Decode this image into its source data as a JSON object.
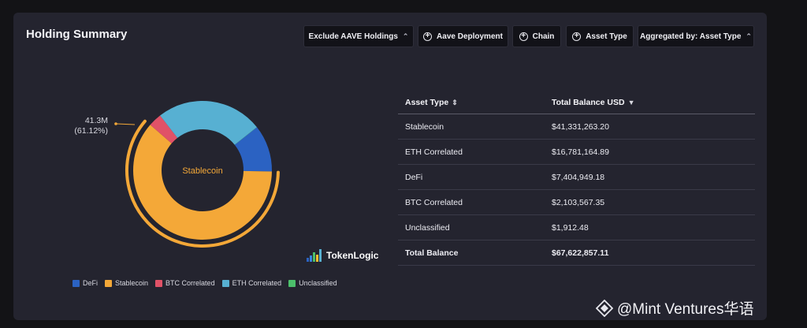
{
  "card": {
    "title": "Holding Summary",
    "filters": {
      "exclude": "Exclude AAVE Holdings",
      "aave_deployment": "Aave Deployment",
      "chain": "Chain",
      "asset_type": "Asset Type",
      "aggregated": "Aggregated by: Asset Type"
    }
  },
  "chart_data": {
    "type": "pie",
    "style": "donut",
    "center_label": "Stablecoin",
    "highlighted_slice": "Stablecoin",
    "callout": {
      "value": "41.3M",
      "percent": "(61.12%)"
    },
    "slices": [
      {
        "name": "DeFi",
        "value": 7404949.18,
        "color": "#2b62c2"
      },
      {
        "name": "Stablecoin",
        "value": 41331263.2,
        "color": "#f4a838"
      },
      {
        "name": "BTC Correlated",
        "value": 2103567.35,
        "color": "#e05267"
      },
      {
        "name": "ETH Correlated",
        "value": 16781164.89,
        "color": "#57b0d2"
      },
      {
        "name": "Unclassified",
        "value": 1912.48,
        "color": "#4cbf6b"
      }
    ],
    "legend": [
      "DeFi",
      "Stablecoin",
      "BTC Correlated",
      "ETH Correlated",
      "Unclassified"
    ],
    "legend_placement": "bottom"
  },
  "logo": {
    "text": "TokenLogic"
  },
  "table": {
    "headers": [
      "Asset Type",
      "Total Balance USD"
    ],
    "rows": [
      [
        "Stablecoin",
        "$41,331,263.20"
      ],
      [
        "ETH Correlated",
        "$16,781,164.89"
      ],
      [
        "DeFi",
        "$7,404,949.18"
      ],
      [
        "BTC Correlated",
        "$2,103,567.35"
      ],
      [
        "Unclassified",
        "$1,912.48"
      ]
    ],
    "total": [
      "Total Balance",
      "$67,622,857.11"
    ]
  },
  "watermark": {
    "text": "@Mint Ventures华语"
  }
}
